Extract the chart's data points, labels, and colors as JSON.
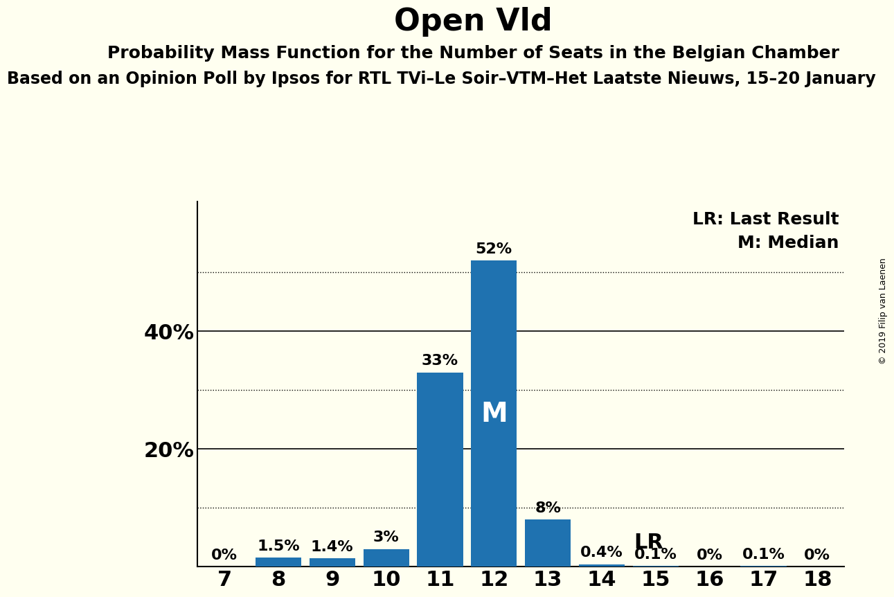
{
  "title": "Open Vld",
  "subtitle": "Probability Mass Function for the Number of Seats in the Belgian Chamber",
  "subtitle2": "Based on an Opinion Poll by Ipsos for RTL TVi–Le Soir–VTM–Het Laatste Nieuws, 15–20 January",
  "copyright": "© 2019 Filip van Laenen",
  "categories": [
    7,
    8,
    9,
    10,
    11,
    12,
    13,
    14,
    15,
    16,
    17,
    18
  ],
  "values": [
    0.0,
    1.5,
    1.4,
    3.0,
    33.0,
    52.0,
    8.0,
    0.4,
    0.1,
    0.0,
    0.1,
    0.0
  ],
  "labels": [
    "0%",
    "1.5%",
    "1.4%",
    "3%",
    "33%",
    "52%",
    "8%",
    "0.4%",
    "0.1%",
    "0%",
    "0.1%",
    "0%"
  ],
  "bar_color": "#1f72b0",
  "background_color": "#fffff0",
  "median_bar_idx": 5,
  "last_result_bar_idx": 7,
  "solid_lines": [
    20,
    40
  ],
  "dotted_lines": [
    10,
    30,
    50
  ],
  "xlim": [
    6.5,
    18.5
  ],
  "ylim": [
    0,
    62
  ],
  "legend_lr": "LR: Last Result",
  "legend_m": "M: Median",
  "median_label": "M",
  "lr_label": "LR",
  "title_fontsize": 32,
  "subtitle_fontsize": 18,
  "subtitle2_fontsize": 17,
  "bar_label_fontsize": 16,
  "axis_tick_fontsize": 22,
  "legend_fontsize": 18,
  "annotation_fontsize": 22,
  "ytick_positions": [
    20,
    40
  ],
  "ytick_labels": [
    "20%",
    "40%"
  ]
}
